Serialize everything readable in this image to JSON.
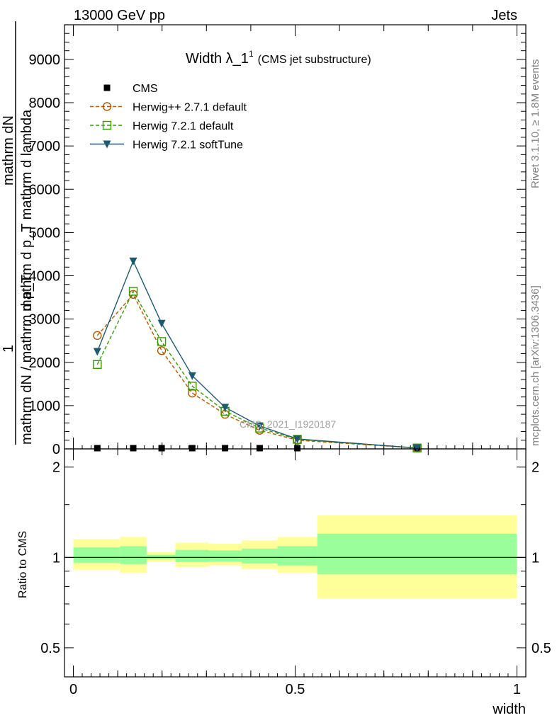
{
  "header": {
    "left": "13000 GeV pp",
    "right": "Jets"
  },
  "side_labels": {
    "rivet": "Rivet 3.1.10, ≥ 1.8M events",
    "mcplots": "mcplots.cern.ch [arXiv:1306.3436]"
  },
  "chart_data": {
    "type": "line",
    "title": "Width λ_1",
    "title_sup": "1",
    "subtitle": "(CMS jet substructure)",
    "watermark": "CMS_2021_I1920187",
    "xlabel": "width",
    "ylabel_main_numerator_1": "mathrm dN",
    "ylabel_main_numerator_2": "mathrm d p_T mathrm d lambda",
    "ylabel_main_fraction_one": "1",
    "ylabel_main_denominator": "mathrm dN / mathrm d p_T",
    "ylabel_ratio": "Ratio to CMS",
    "xlim": [
      -0.02,
      1.02
    ],
    "ylim": [
      0,
      9800
    ],
    "ratio_ylim": [
      0.4,
      2.3
    ],
    "xticks": [
      0,
      0.5,
      1
    ],
    "xtick_labels": [
      "0",
      "0.5",
      "1"
    ],
    "yticks": [
      0,
      1000,
      2000,
      3000,
      4000,
      5000,
      6000,
      7000,
      8000,
      9000
    ],
    "ytick_labels": [
      "0",
      "1000",
      "2000",
      "3000",
      "4000",
      "5000",
      "6000",
      "7000",
      "8000",
      "9000"
    ],
    "ratio_ticks": [
      0.5,
      1,
      2
    ],
    "ratio_tick_labels": [
      "0.5",
      "1",
      "2"
    ],
    "x": [
      0.054,
      0.135,
      0.199,
      0.268,
      0.342,
      0.42,
      0.505,
      0.775
    ],
    "series": [
      {
        "name": "CMS",
        "color": "#000000",
        "marker": "square-filled",
        "dash": "none",
        "values": [
          0,
          0,
          0,
          0,
          0,
          0,
          0,
          0
        ]
      },
      {
        "name": "Herwig++ 2.7.1 default",
        "color": "#b35900",
        "marker": "circle-open",
        "dash": "dashed",
        "values": [
          2620,
          3570,
          2270,
          1290,
          800,
          430,
          200,
          20
        ]
      },
      {
        "name": "Herwig 7.2.1 default",
        "color": "#339900",
        "marker": "square-open",
        "dash": "dashed",
        "values": [
          1950,
          3640,
          2480,
          1450,
          870,
          480,
          220,
          20
        ]
      },
      {
        "name": "Herwig 7.2.1 softTune",
        "color": "#1d5a6e",
        "marker": "triangle-down-filled",
        "dash": "solid",
        "values": [
          2250,
          4340,
          2900,
          1690,
          960,
          530,
          230,
          20
        ]
      }
    ],
    "ratio_bands": [
      {
        "x0": 0.0,
        "x1": 0.105,
        "yellow": [
          0.91,
          1.15
        ],
        "green": [
          0.96,
          1.08
        ]
      },
      {
        "x0": 0.105,
        "x1": 0.165,
        "yellow": [
          0.89,
          1.17
        ],
        "green": [
          0.95,
          1.09
        ]
      },
      {
        "x0": 0.165,
        "x1": 0.23,
        "yellow": [
          0.97,
          1.04
        ],
        "green": [
          0.985,
          1.02
        ]
      },
      {
        "x0": 0.23,
        "x1": 0.305,
        "yellow": [
          0.93,
          1.12
        ],
        "green": [
          0.965,
          1.06
        ]
      },
      {
        "x0": 0.305,
        "x1": 0.38,
        "yellow": [
          0.94,
          1.11
        ],
        "green": [
          0.97,
          1.055
        ]
      },
      {
        "x0": 0.38,
        "x1": 0.46,
        "yellow": [
          0.915,
          1.14
        ],
        "green": [
          0.955,
          1.07
        ]
      },
      {
        "x0": 0.46,
        "x1": 0.55,
        "yellow": [
          0.89,
          1.17
        ],
        "green": [
          0.94,
          1.09
        ]
      },
      {
        "x0": 0.55,
        "x1": 1.0,
        "yellow": [
          0.73,
          1.38
        ],
        "green": [
          0.88,
          1.2
        ]
      }
    ],
    "legend_position": "top-left",
    "grid": false
  }
}
